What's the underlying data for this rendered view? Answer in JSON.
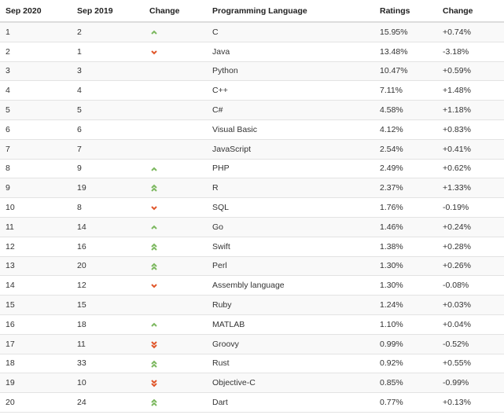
{
  "colors": {
    "up": "#7cb85f",
    "down": "#e0562a"
  },
  "headers": [
    "Sep 2020",
    "Sep 2019",
    "Change",
    "Programming Language",
    "Ratings",
    "Change"
  ],
  "rows": [
    {
      "r2020": "1",
      "r2019": "2",
      "trend": "up",
      "lang": "C",
      "rating": "15.95%",
      "change": "+0.74%"
    },
    {
      "r2020": "2",
      "r2019": "1",
      "trend": "down",
      "lang": "Java",
      "rating": "13.48%",
      "change": "-3.18%"
    },
    {
      "r2020": "3",
      "r2019": "3",
      "trend": "",
      "lang": "Python",
      "rating": "10.47%",
      "change": "+0.59%"
    },
    {
      "r2020": "4",
      "r2019": "4",
      "trend": "",
      "lang": "C++",
      "rating": "7.11%",
      "change": "+1.48%"
    },
    {
      "r2020": "5",
      "r2019": "5",
      "trend": "",
      "lang": "C#",
      "rating": "4.58%",
      "change": "+1.18%"
    },
    {
      "r2020": "6",
      "r2019": "6",
      "trend": "",
      "lang": "Visual Basic",
      "rating": "4.12%",
      "change": "+0.83%"
    },
    {
      "r2020": "7",
      "r2019": "7",
      "trend": "",
      "lang": "JavaScript",
      "rating": "2.54%",
      "change": "+0.41%"
    },
    {
      "r2020": "8",
      "r2019": "9",
      "trend": "up",
      "lang": "PHP",
      "rating": "2.49%",
      "change": "+0.62%"
    },
    {
      "r2020": "9",
      "r2019": "19",
      "trend": "double-up",
      "lang": "R",
      "rating": "2.37%",
      "change": "+1.33%"
    },
    {
      "r2020": "10",
      "r2019": "8",
      "trend": "down",
      "lang": "SQL",
      "rating": "1.76%",
      "change": "-0.19%"
    },
    {
      "r2020": "11",
      "r2019": "14",
      "trend": "up",
      "lang": "Go",
      "rating": "1.46%",
      "change": "+0.24%"
    },
    {
      "r2020": "12",
      "r2019": "16",
      "trend": "double-up",
      "lang": "Swift",
      "rating": "1.38%",
      "change": "+0.28%"
    },
    {
      "r2020": "13",
      "r2019": "20",
      "trend": "double-up",
      "lang": "Perl",
      "rating": "1.30%",
      "change": "+0.26%"
    },
    {
      "r2020": "14",
      "r2019": "12",
      "trend": "down",
      "lang": "Assembly language",
      "rating": "1.30%",
      "change": "-0.08%"
    },
    {
      "r2020": "15",
      "r2019": "15",
      "trend": "",
      "lang": "Ruby",
      "rating": "1.24%",
      "change": "+0.03%"
    },
    {
      "r2020": "16",
      "r2019": "18",
      "trend": "up",
      "lang": "MATLAB",
      "rating": "1.10%",
      "change": "+0.04%"
    },
    {
      "r2020": "17",
      "r2019": "11",
      "trend": "double-down",
      "lang": "Groovy",
      "rating": "0.99%",
      "change": "-0.52%"
    },
    {
      "r2020": "18",
      "r2019": "33",
      "trend": "double-up",
      "lang": "Rust",
      "rating": "0.92%",
      "change": "+0.55%"
    },
    {
      "r2020": "19",
      "r2019": "10",
      "trend": "double-down",
      "lang": "Objective-C",
      "rating": "0.85%",
      "change": "-0.99%"
    },
    {
      "r2020": "20",
      "r2019": "24",
      "trend": "double-up",
      "lang": "Dart",
      "rating": "0.77%",
      "change": "+0.13%"
    }
  ]
}
